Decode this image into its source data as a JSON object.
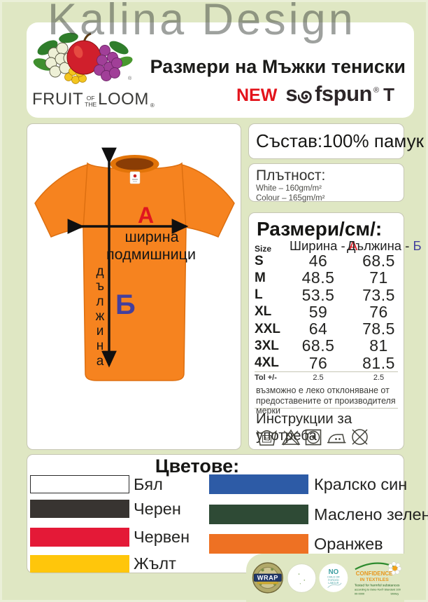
{
  "watermark": "Kalina Design",
  "header": {
    "brand": {
      "fruit": "FRUIT",
      "of": "OF",
      "the": "THE",
      "loom": "LOOM",
      "reg": "®"
    },
    "title": "Размери на Мъжки тениски",
    "subbrand": {
      "new": "NEW",
      "s1": "s",
      "s2": "fspun",
      "reg": "®",
      "suffix": "T"
    }
  },
  "shirt": {
    "letter_a": "А",
    "letter_b": "Б",
    "width_label_line1": "ширина",
    "width_label_line2": "подмишници",
    "length_word": "дължина"
  },
  "composition": {
    "text": "Състав:100% памук"
  },
  "density": {
    "title": "Плътност:",
    "line1": "White – 160gm/m²",
    "line2": "Colour – 165gm/m²"
  },
  "size_table": {
    "title": "Размери/см/:",
    "col_size": "Size",
    "col_width_prefix": "Ширина - ",
    "col_width_letter": "А",
    "col_length_prefix": "Дължина - ",
    "col_length_letter": "Б",
    "rows": [
      {
        "size": "S",
        "width": "46",
        "length": "68.5"
      },
      {
        "size": "M",
        "width": "48.5",
        "length": "71"
      },
      {
        "size": "L",
        "width": "53.5",
        "length": "73.5"
      },
      {
        "size": "XL",
        "width": "59",
        "length": "76"
      },
      {
        "size": "XXL",
        "width": "64",
        "length": "78.5"
      },
      {
        "size": "3XL",
        "width": "68.5",
        "length": "81"
      },
      {
        "size": "4XL",
        "width": "76",
        "length": "81.5"
      }
    ],
    "tol": {
      "label": "Tol +/-",
      "width": "2.5",
      "length": "2.5"
    },
    "disclaimer_line1": "възможно е леко отклоняване от",
    "disclaimer_line2": "предоставените от производителя мерки"
  },
  "care": {
    "title": "Инструкции за употреба",
    "wash_temp": "40"
  },
  "colors_section": {
    "title": "Цветове:",
    "left": [
      {
        "label": "Бял",
        "hex": "#ffffff",
        "border": true
      },
      {
        "label": "Черен",
        "hex": "#383431"
      },
      {
        "label": "Червен",
        "hex": "#e41937"
      },
      {
        "label": "Жълт",
        "hex": "#ffc60b"
      }
    ],
    "right": [
      {
        "label": "Кралско син",
        "hex": "#2d5ba6"
      },
      {
        "label": "Маслено зелен",
        "hex": "#2e4a35"
      },
      {
        "label": "Оранжев",
        "hex": "#ee7123"
      }
    ]
  },
  "footer_logos": {
    "wrap": {
      "text": "WRAP"
    },
    "no_child": {
      "no": "NO",
      "line1": "CHILD OR",
      "line2": "FORCED",
      "line3": "LABOUR"
    },
    "oeko": {
      "line1": "CONFIDENCE",
      "line2": "IN TEXTILES",
      "line3": "Tested for harmful substances",
      "line4": "according to Oeko-Tex® Standard 100",
      "line5": "00-0000",
      "line6": "Shirley"
    }
  },
  "accent_colors": {
    "letter_a": "#e0161f",
    "letter_b": "#433f9d",
    "new_red": "#e3131b",
    "shirt_orange": "#f6831f"
  }
}
